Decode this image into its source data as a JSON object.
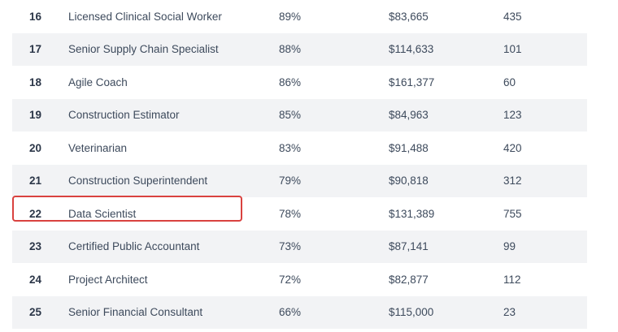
{
  "table": {
    "rows": [
      {
        "rank": "16",
        "title": "Licensed Clinical Social Worker",
        "pct": "89%",
        "salary": "$83,665",
        "count": "435"
      },
      {
        "rank": "17",
        "title": "Senior Supply Chain Specialist",
        "pct": "88%",
        "salary": "$114,633",
        "count": "101"
      },
      {
        "rank": "18",
        "title": "Agile Coach",
        "pct": "86%",
        "salary": "$161,377",
        "count": "60"
      },
      {
        "rank": "19",
        "title": "Construction Estimator",
        "pct": "85%",
        "salary": "$84,963",
        "count": "123"
      },
      {
        "rank": "20",
        "title": "Veterinarian",
        "pct": "83%",
        "salary": "$91,488",
        "count": "420"
      },
      {
        "rank": "21",
        "title": "Construction Superintendent",
        "pct": "79%",
        "salary": "$90,818",
        "count": "312"
      },
      {
        "rank": "22",
        "title": "Data Scientist",
        "pct": "78%",
        "salary": "$131,389",
        "count": "755"
      },
      {
        "rank": "23",
        "title": "Certified Public Accountant",
        "pct": "73%",
        "salary": "$87,141",
        "count": "99"
      },
      {
        "rank": "24",
        "title": "Project Architect",
        "pct": "72%",
        "salary": "$82,877",
        "count": "112"
      },
      {
        "rank": "25",
        "title": "Senior Financial Consultant",
        "pct": "66%",
        "salary": "$115,000",
        "count": "23"
      }
    ],
    "highlighted_rank": "22",
    "highlight_color": "#d9423f",
    "alt_row_color": "#f2f3f5"
  }
}
